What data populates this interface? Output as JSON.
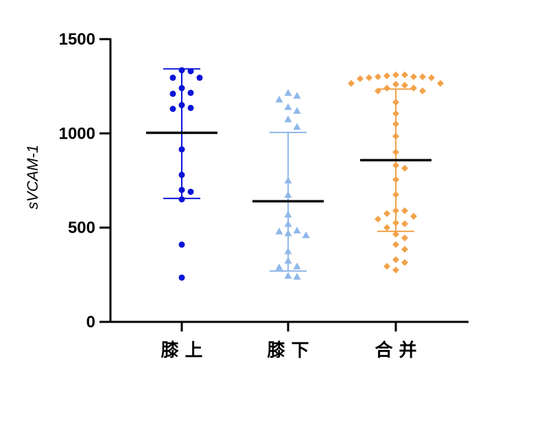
{
  "chart_data": {
    "type": "scatter",
    "subtype": "dot-plot-with-mean-and-sd",
    "title": "",
    "xlabel": "",
    "ylabel": "sVCAM-1",
    "ylim": [
      0,
      1500
    ],
    "yticks": [
      0,
      500,
      1000,
      1500
    ],
    "categories": [
      "膝 上",
      "膝 下",
      "合 并"
    ],
    "grid": false,
    "legend": "none",
    "series": [
      {
        "category": "膝 上",
        "marker": "circle",
        "color": "#0a14d8",
        "mean": 1003,
        "sd_low": 655,
        "sd_high": 1342,
        "values": [
          1335,
          1330,
          1295,
          1295,
          1240,
          1215,
          1210,
          1150,
          1135,
          1130,
          915,
          780,
          700,
          690,
          650,
          410,
          235
        ]
      },
      {
        "category": "膝 下",
        "marker": "triangle",
        "color": "#8fb8ea",
        "mean": 640,
        "sd_low": 270,
        "sd_high": 1005,
        "values": [
          1215,
          1200,
          1180,
          1140,
          1120,
          1075,
          1035,
          750,
          675,
          570,
          520,
          485,
          480,
          470,
          460,
          375,
          325,
          295,
          290,
          245,
          240
        ]
      },
      {
        "category": "合 并",
        "marker": "diamond",
        "color": "#f2a24a",
        "mean": 858,
        "sd_low": 480,
        "sd_high": 1235,
        "values": [
          1310,
          1310,
          1305,
          1300,
          1300,
          1300,
          1295,
          1295,
          1290,
          1265,
          1265,
          1260,
          1255,
          1240,
          1240,
          1225,
          1225,
          1165,
          1105,
          1050,
          985,
          900,
          830,
          815,
          755,
          675,
          590,
          590,
          575,
          560,
          545,
          525,
          520,
          500,
          465,
          445,
          410,
          385,
          330,
          315,
          295,
          275
        ]
      }
    ]
  }
}
